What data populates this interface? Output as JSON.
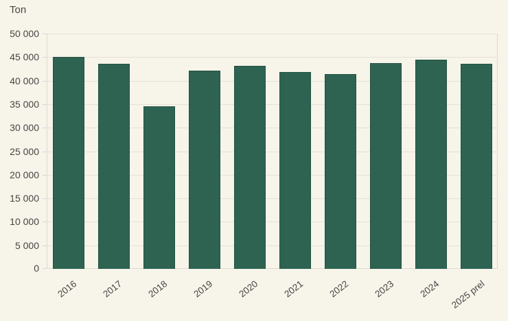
{
  "chart_data": {
    "type": "bar",
    "title": "",
    "ylabel": "Ton",
    "xlabel": "",
    "categories": [
      "2016",
      "2017",
      "2018",
      "2019",
      "2020",
      "2021",
      "2022",
      "2023",
      "2024",
      "2025 prel"
    ],
    "values": [
      45000,
      43600,
      34500,
      42200,
      43100,
      41800,
      41400,
      43800,
      44500,
      43600
    ],
    "ylim": [
      0,
      50000
    ],
    "ytick_step": 5000,
    "ytick_labels": [
      "0",
      "5 000",
      "10 000",
      "15 000",
      "20 000",
      "25 000",
      "30 000",
      "35 000",
      "40 000",
      "45 000",
      "50 000"
    ],
    "grid": true,
    "legend": "none",
    "colors": {
      "bar": "#2e6352",
      "background": "#f7f4e9",
      "gridline": "#e4e1d8",
      "axis_line": "#dcd9d0",
      "text": "#454545"
    }
  }
}
